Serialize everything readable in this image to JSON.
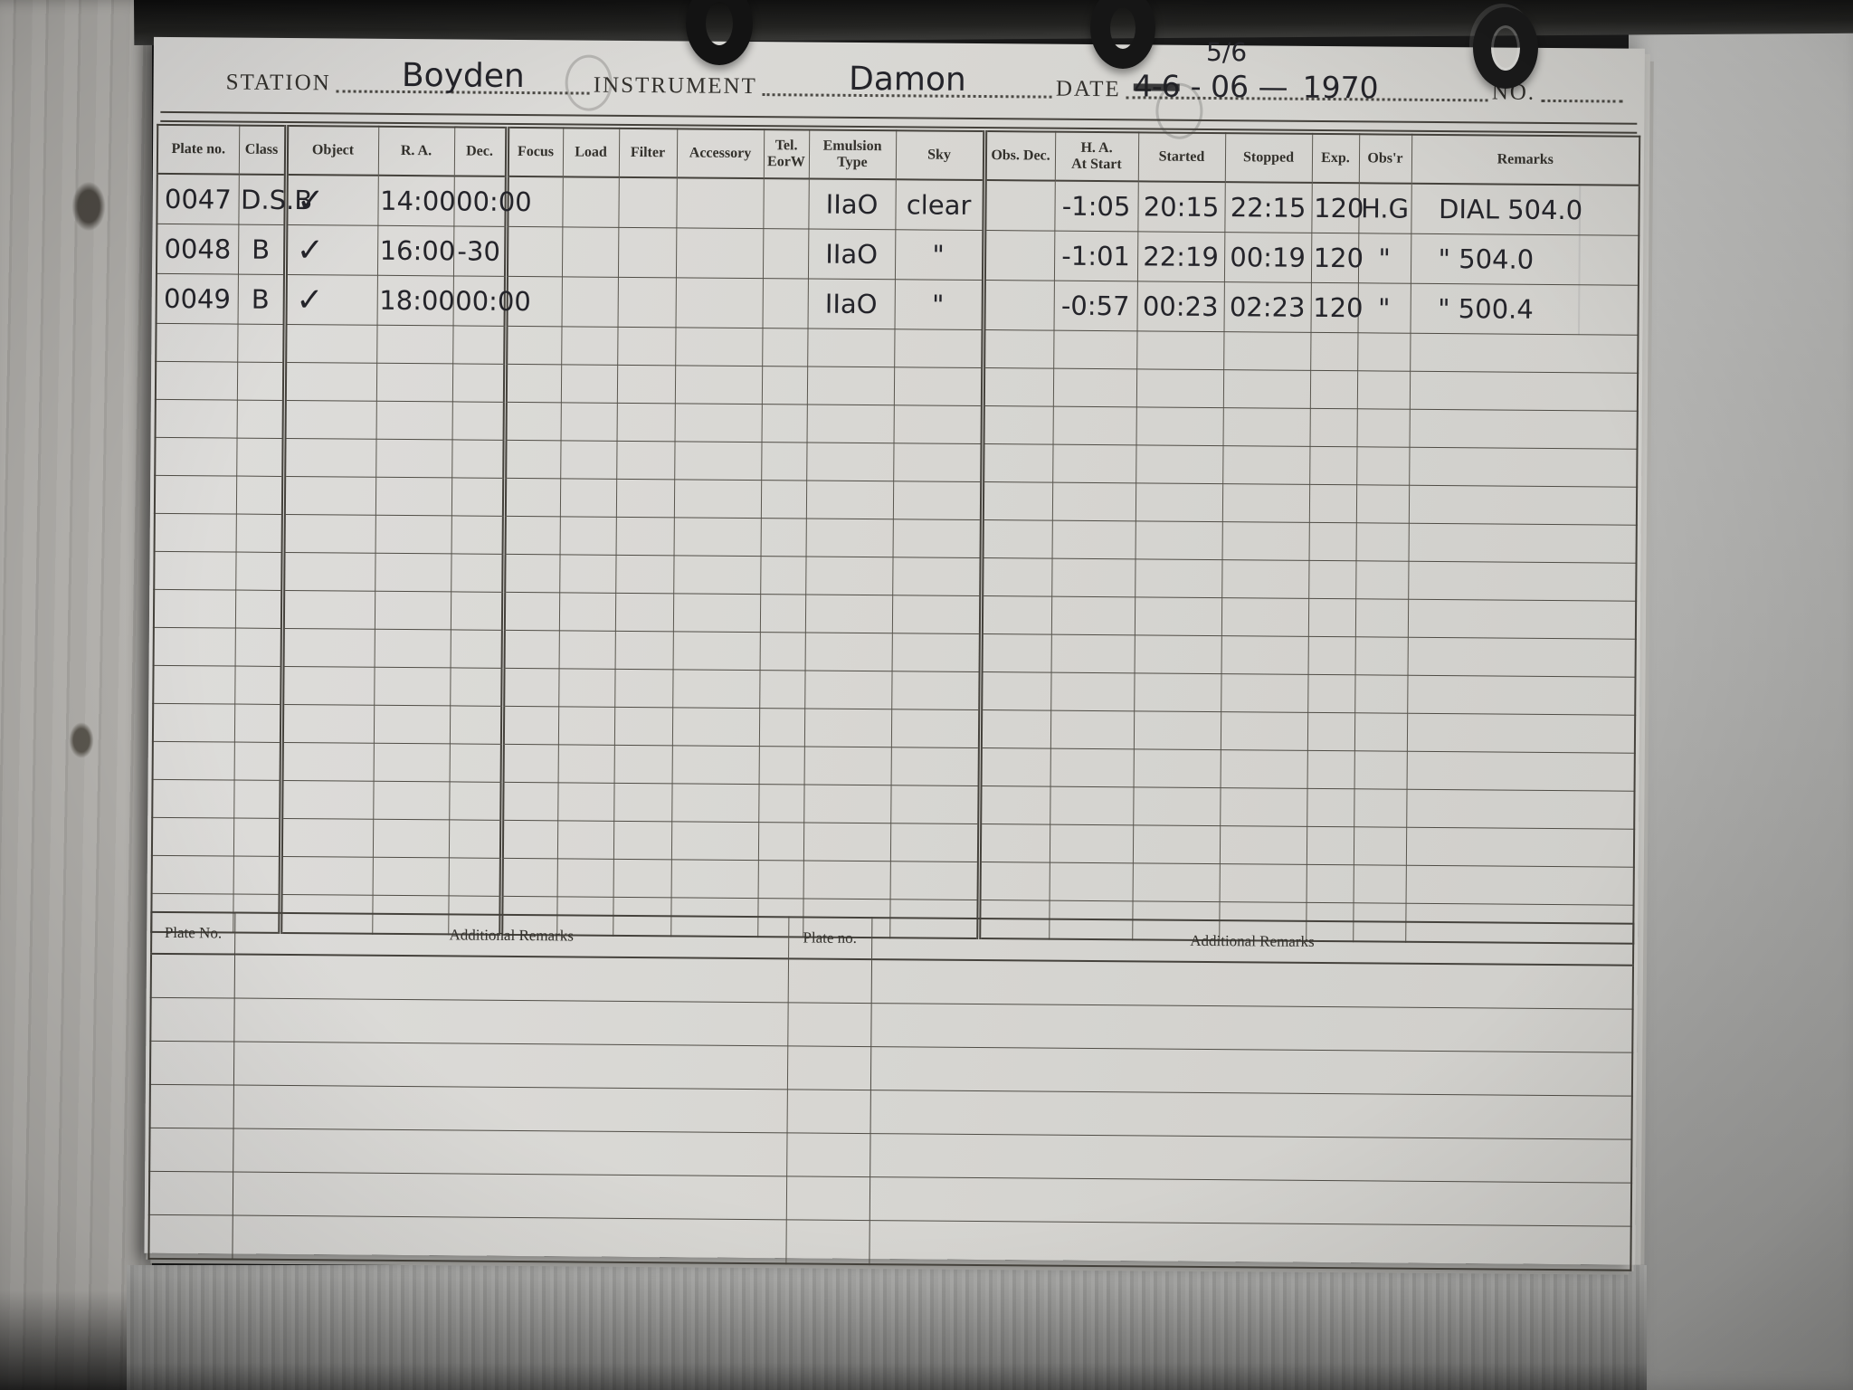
{
  "colors": {
    "paper": "#d8d7d3",
    "ink": "#24242a",
    "rule_line": "#4a473f"
  },
  "form_header": {
    "station_label": "STATION",
    "station_value": "Boyden",
    "instrument_label": "INSTRUMENT",
    "instrument_value": "Damon",
    "date_label": "DATE",
    "date_day_over": "5/6",
    "date_struck": "4-6",
    "date_value": "- 06 —",
    "date_year": "1970",
    "no_label": "NO."
  },
  "table": {
    "columns": [
      {
        "key": "plate",
        "label": "Plate no."
      },
      {
        "key": "class",
        "label": "Class"
      },
      {
        "key": "object",
        "label": "Object"
      },
      {
        "key": "ra",
        "label": "R. A."
      },
      {
        "key": "dec",
        "label": "Dec."
      },
      {
        "key": "focus",
        "label": "Focus"
      },
      {
        "key": "load",
        "label": "Load"
      },
      {
        "key": "filter",
        "label": "Filter"
      },
      {
        "key": "accessory",
        "label": "Accessory"
      },
      {
        "key": "tel",
        "label": "Tel.\nEorW"
      },
      {
        "key": "emulsion",
        "label": "Emulsion\nType"
      },
      {
        "key": "sky",
        "label": "Sky"
      },
      {
        "key": "obs_dec",
        "label": "Obs. Dec."
      },
      {
        "key": "ha_start",
        "label": "H. A.\nAt Start"
      },
      {
        "key": "started",
        "label": "Started"
      },
      {
        "key": "stopped",
        "label": "Stopped"
      },
      {
        "key": "exp",
        "label": "Exp."
      },
      {
        "key": "obsr",
        "label": "Obs'r"
      },
      {
        "key": "remarks",
        "label": "Remarks"
      }
    ],
    "rows": [
      {
        "plate": "0047",
        "class": "D.S.B",
        "object": "✓",
        "ra": "14:00",
        "dec": "00:00",
        "emulsion": "IIaO",
        "sky": "clear",
        "ha_start": "-1:05",
        "started": "20:15",
        "stopped": "22:15",
        "exp": "120",
        "obsr": "H.G",
        "remarks": "DIAL 504.0"
      },
      {
        "plate": "0048",
        "class": "B",
        "object": "✓",
        "ra": "16:00",
        "dec": "-30",
        "emulsion": "IIaO",
        "sky": "\"",
        "ha_start": "-1:01",
        "started": "22:19",
        "stopped": "00:19",
        "exp": "120",
        "obsr": "\"",
        "remarks": "\"  504.0"
      },
      {
        "plate": "0049",
        "class": "B",
        "object": "✓",
        "ra": "18:00",
        "dec": "00:00",
        "emulsion": "IIaO",
        "sky": "\"",
        "ha_start": "-0:57",
        "started": "00:23",
        "stopped": "02:23",
        "exp": "120",
        "obsr": "\"",
        "remarks": "\"  500.4"
      }
    ]
  },
  "additional_remarks_section": {
    "left_plate_label": "Plate No.",
    "left_remarks_label": "Additional Remarks",
    "right_plate_label": "Plate no.",
    "right_remarks_label": "Additional Remarks"
  }
}
